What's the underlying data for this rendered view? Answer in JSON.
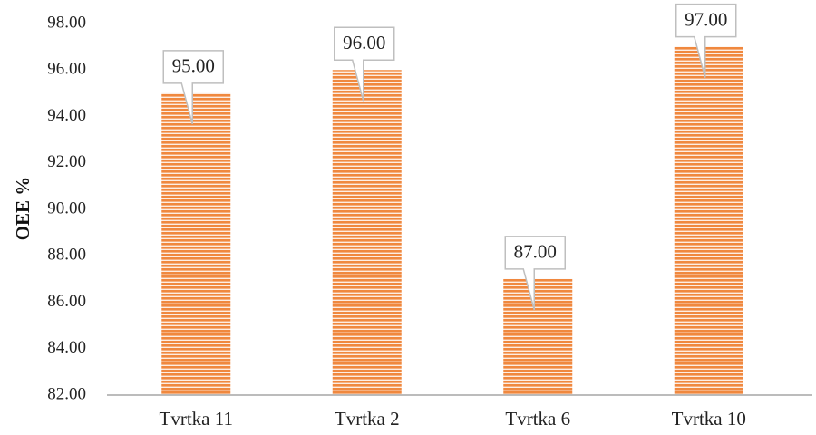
{
  "chart_data": {
    "type": "bar",
    "categories": [
      "Tvrtka 11",
      "Tvrtka 2",
      "Tvrtka 6",
      "Tvrtka 10"
    ],
    "values": [
      95.0,
      96.0,
      87.0,
      97.0
    ],
    "data_labels": [
      "95.00",
      "96.00",
      "87.00",
      "97.00"
    ],
    "title": "",
    "xlabel": "",
    "ylabel": "OEE %",
    "ylim": [
      82,
      98
    ],
    "yticks": [
      82,
      84,
      86,
      88,
      90,
      92,
      94,
      96,
      98
    ],
    "ytick_labels": [
      "82.00",
      "84.00",
      "86.00",
      "88.00",
      "90.00",
      "92.00",
      "94.00",
      "96.00",
      "98.00"
    ],
    "grid": false,
    "legend": "none",
    "bar_color": "#f0883e",
    "bar_stripe_color": "#ffffff",
    "axis_color": "#a6a6a6"
  }
}
